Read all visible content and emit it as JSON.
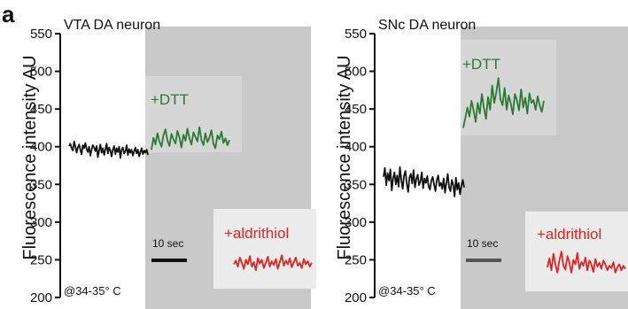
{
  "figure": {
    "panel_label": "a"
  },
  "chart_data": [
    {
      "type": "line",
      "title": "VTA DA neuron",
      "ylabel": "Fluorescence intensity AU",
      "ylim": [
        200,
        550
      ],
      "yticks": [
        200,
        250,
        300,
        350,
        400,
        450,
        500,
        550
      ],
      "temperature_note": "@34-35° C",
      "scale_bar_label": "10 sec",
      "series": [
        {
          "label": "",
          "color": "#111111",
          "values": [
            401,
            404,
            398,
            395,
            407,
            400,
            392,
            399,
            403,
            396,
            390,
            402,
            398,
            405,
            397,
            393,
            400,
            388,
            396,
            402,
            399,
            394,
            401,
            386,
            395,
            403,
            392,
            398,
            389,
            397,
            404,
            391,
            399,
            395,
            387,
            396,
            401,
            390,
            398,
            393,
            400,
            385,
            396,
            399,
            391,
            394,
            402,
            389,
            397,
            392,
            396,
            388,
            394,
            399,
            391,
            396,
            387,
            393,
            398,
            390,
            395,
            392,
            396,
            389
          ]
        },
        {
          "label": "+DTT",
          "color": "#2a7a33",
          "values": [
            396,
            412,
            403,
            418,
            407,
            400,
            415,
            423,
            408,
            401,
            417,
            410,
            404,
            421,
            412,
            399,
            416,
            408,
            424,
            411,
            403,
            419,
            413,
            407,
            426,
            409,
            402,
            418,
            406,
            412,
            422,
            404,
            398,
            415,
            410,
            420,
            405,
            411,
            402,
            409
          ]
        },
        {
          "label": "+aldrithiol",
          "color": "#e02222",
          "values": [
            244,
            249,
            241,
            253,
            246,
            238,
            250,
            244,
            255,
            241,
            247,
            236,
            252,
            245,
            250,
            239,
            246,
            254,
            241,
            248,
            243,
            251,
            238,
            247,
            256,
            242,
            249,
            244,
            252,
            240,
            247,
            253,
            242,
            246,
            239,
            251,
            244,
            248,
            241,
            246
          ]
        }
      ]
    },
    {
      "type": "line",
      "title": "SNc DA neuron",
      "ylabel": "Fluorescence intensity AU",
      "ylim": [
        200,
        550
      ],
      "yticks": [
        200,
        250,
        300,
        350,
        400,
        450,
        500,
        550
      ],
      "temperature_note": "@34-35° C",
      "scale_bar_label": "10 sec",
      "series": [
        {
          "label": "",
          "color": "#111111",
          "values": [
            360,
            372,
            349,
            365,
            355,
            370,
            342,
            358,
            366,
            350,
            362,
            347,
            373,
            356,
            344,
            361,
            368,
            352,
            340,
            359,
            364,
            351,
            369,
            346,
            357,
            363,
            349,
            354,
            366,
            345,
            358,
            352,
            361,
            347,
            343,
            355,
            360,
            350,
            341,
            356,
            362,
            348,
            352,
            344,
            358,
            339,
            351,
            364,
            346,
            341,
            356,
            349,
            334,
            359,
            343,
            352,
            337,
            348,
            356,
            346
          ]
        },
        {
          "label": "+DTT",
          "color": "#2a7a33",
          "values": [
            425,
            438,
            452,
            440,
            461,
            448,
            433,
            458,
            444,
            470,
            452,
            437,
            466,
            449,
            481,
            458,
            472,
            491,
            463,
            455,
            478,
            449,
            468,
            457,
            443,
            470,
            461,
            448,
            476,
            452,
            465,
            444,
            471,
            458,
            462,
            449,
            467,
            455,
            446,
            461
          ]
        },
        {
          "label": "+aldrithiol",
          "color": "#e02222",
          "values": [
            240,
            252,
            236,
            258,
            244,
            233,
            249,
            261,
            242,
            237,
            255,
            246,
            233,
            250,
            244,
            259,
            238,
            247,
            242,
            253,
            236,
            249,
            244,
            234,
            251,
            241,
            246,
            238,
            249,
            244,
            236,
            242,
            239,
            247,
            233,
            240,
            244,
            236,
            242,
            238
          ]
        }
      ]
    }
  ]
}
